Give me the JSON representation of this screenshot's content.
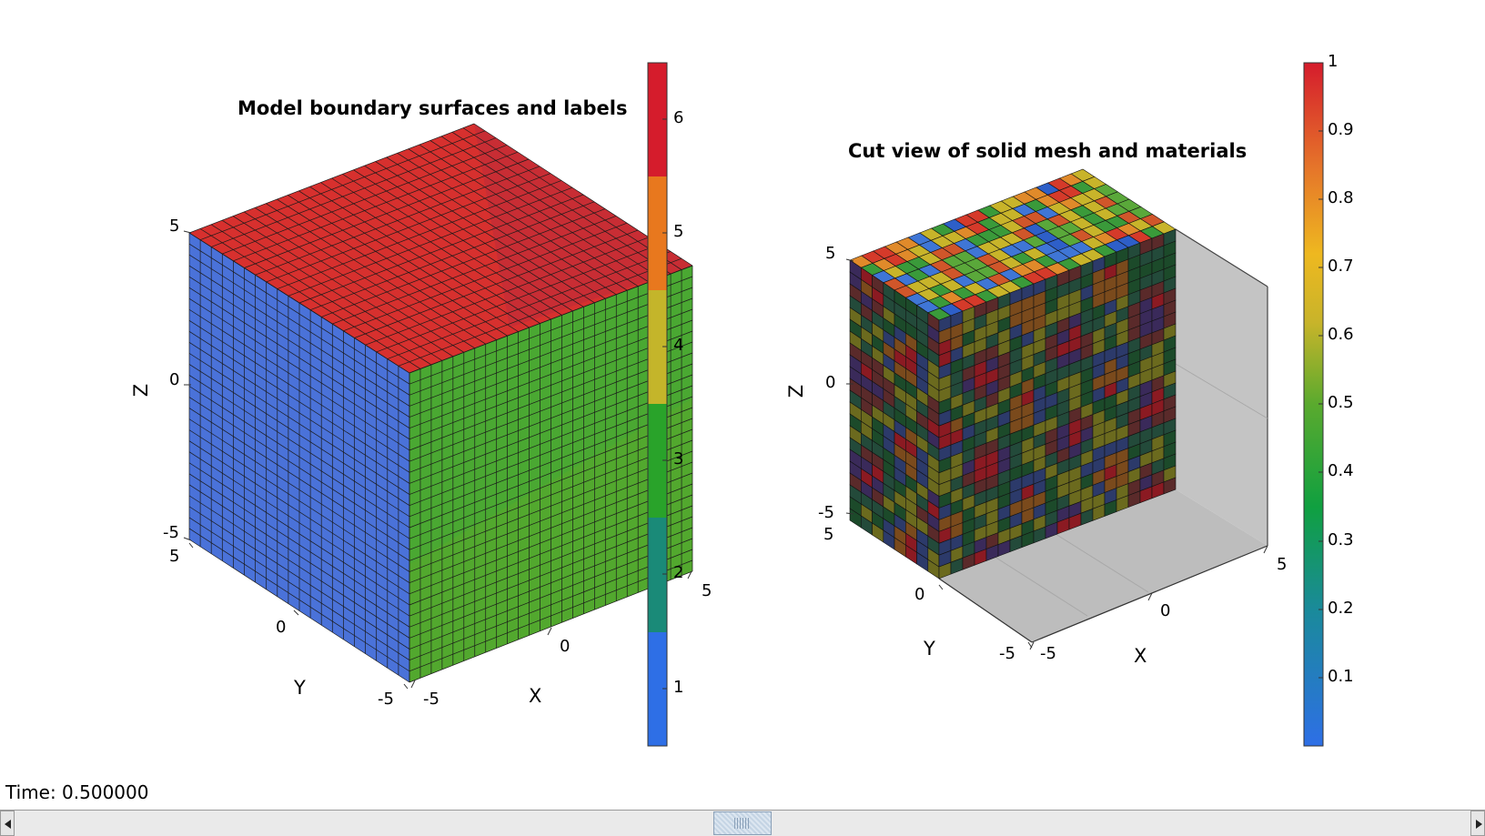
{
  "left_plot": {
    "title": "Model boundary surfaces and labels",
    "xlabel": "X",
    "ylabel": "Y",
    "zlabel": "Z",
    "z_ticks": [
      "5",
      "0",
      "-5"
    ],
    "y_ticks": [
      "5",
      "0",
      "-5"
    ],
    "x_ticks": [
      "-5",
      "0",
      "5"
    ],
    "face_colors": {
      "top": "#d7302e",
      "left": "#4a72d9",
      "right": "#4aa832"
    },
    "colorbar": {
      "colors": [
        "#2e6fe6",
        "#1a8a78",
        "#29a32a",
        "#c4b52a",
        "#e8781e",
        "#d51c2c"
      ],
      "ticks": [
        "6",
        "5",
        "4",
        "3",
        "2",
        "1"
      ]
    }
  },
  "right_plot": {
    "title": "Cut view of solid mesh and materials",
    "xlabel": "X",
    "ylabel": "Y",
    "zlabel": "Z",
    "z_ticks": [
      "5",
      "0",
      "-5"
    ],
    "y_ticks": [
      "5",
      "0",
      "-5"
    ],
    "x_ticks": [
      "-5",
      "0",
      "5"
    ],
    "colorbar": {
      "ticks": [
        "1",
        "0.9",
        "0.8",
        "0.7",
        "0.6",
        "0.5",
        "0.4",
        "0.3",
        "0.2",
        "0.1"
      ]
    }
  },
  "status": {
    "time_label": "Time: 0.500000"
  }
}
